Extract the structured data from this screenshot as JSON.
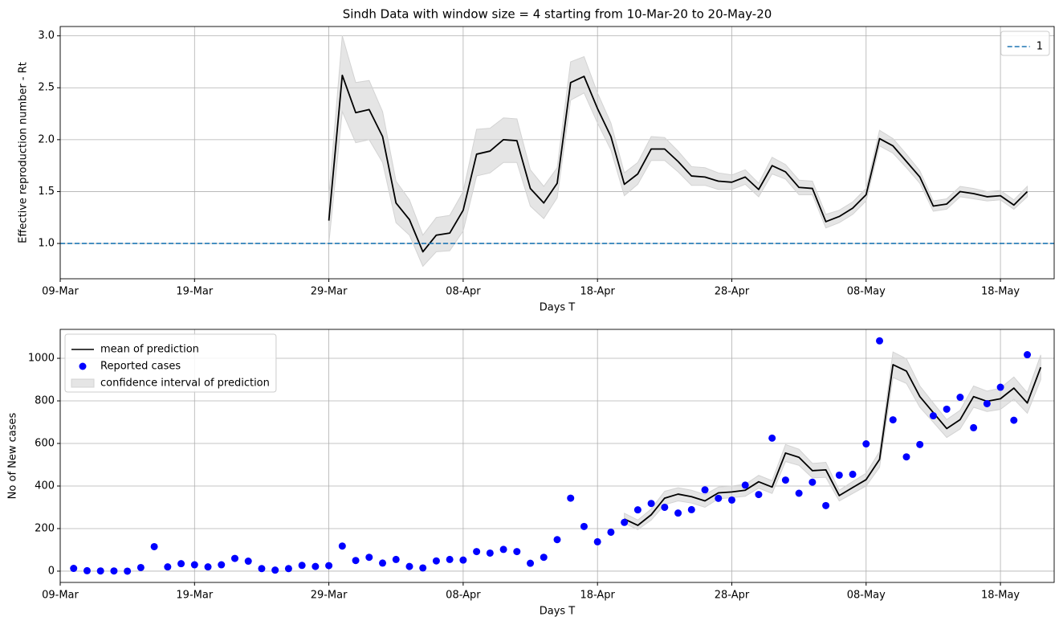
{
  "chart_data": [
    {
      "type": "line",
      "title": "Sindh Data with window size = 4 starting from 10-Mar-20 to 20-May-20",
      "xlabel": "Days T",
      "ylabel": "Effective reproduction number - Rt",
      "xlim": [
        "09-Mar",
        "22-May"
      ],
      "xticks": [
        "09-Mar",
        "19-Mar",
        "29-Mar",
        "08-Apr",
        "18-Apr",
        "28-Apr",
        "08-May",
        "18-May"
      ],
      "ylim": [
        0.66,
        3.09
      ],
      "yticks": [
        {
          "value": 1,
          "label": "1.0"
        },
        {
          "value": 1.5,
          "label": "1.5"
        },
        {
          "value": 2,
          "label": "2.0"
        },
        {
          "value": 2.5,
          "label": "2.5"
        },
        {
          "value": 3,
          "label": "3.0"
        }
      ],
      "grid": true,
      "legend": "upper right",
      "series": [
        {
          "type": "band",
          "color": "#d3d3d3",
          "x": [
            "29-Mar",
            "30-Mar",
            "31-Mar",
            "01-Apr",
            "02-Apr",
            "03-Apr",
            "04-Apr",
            "05-Apr",
            "06-Apr",
            "07-Apr",
            "08-Apr",
            "09-Apr",
            "10-Apr",
            "11-Apr",
            "12-Apr",
            "13-Apr",
            "14-Apr",
            "15-Apr",
            "16-Apr",
            "17-Apr",
            "18-Apr",
            "19-Apr",
            "20-Apr",
            "21-Apr",
            "22-Apr",
            "23-Apr",
            "24-Apr",
            "25-Apr",
            "26-Apr",
            "27-Apr",
            "28-Apr",
            "29-Apr",
            "30-Apr",
            "01-May",
            "02-May",
            "03-May",
            "04-May",
            "05-May",
            "06-May",
            "07-May",
            "08-May",
            "09-May",
            "10-May",
            "11-May",
            "12-May",
            "13-May",
            "14-May",
            "15-May",
            "16-May",
            "17-May",
            "18-May",
            "19-May",
            "20-May"
          ],
          "lower": [
            1.0,
            2.27,
            1.97,
            2.0,
            1.78,
            1.2,
            1.08,
            0.78,
            0.92,
            0.93,
            1.12,
            1.65,
            1.68,
            1.78,
            1.78,
            1.36,
            1.24,
            1.44,
            2.38,
            2.45,
            2.16,
            1.9,
            1.46,
            1.57,
            1.8,
            1.8,
            1.69,
            1.56,
            1.56,
            1.52,
            1.52,
            1.57,
            1.45,
            1.67,
            1.62,
            1.47,
            1.47,
            1.15,
            1.2,
            1.28,
            1.41,
            1.94,
            1.87,
            1.73,
            1.58,
            1.31,
            1.33,
            1.45,
            1.43,
            1.41,
            1.42,
            1.33,
            1.45
          ],
          "upper": [
            1.45,
            3.0,
            2.55,
            2.57,
            2.27,
            1.6,
            1.42,
            1.08,
            1.25,
            1.27,
            1.5,
            2.1,
            2.11,
            2.21,
            2.2,
            1.71,
            1.55,
            1.73,
            2.75,
            2.8,
            2.45,
            2.16,
            1.68,
            1.78,
            2.03,
            2.02,
            1.89,
            1.74,
            1.73,
            1.68,
            1.66,
            1.71,
            1.58,
            1.83,
            1.76,
            1.61,
            1.6,
            1.28,
            1.32,
            1.4,
            1.53,
            2.09,
            2.01,
            1.86,
            1.7,
            1.41,
            1.43,
            1.55,
            1.53,
            1.5,
            1.51,
            1.42,
            1.55
          ]
        },
        {
          "type": "line",
          "color": "#000000",
          "x": [
            "29-Mar",
            "30-Mar",
            "31-Mar",
            "01-Apr",
            "02-Apr",
            "03-Apr",
            "04-Apr",
            "05-Apr",
            "06-Apr",
            "07-Apr",
            "08-Apr",
            "09-Apr",
            "10-Apr",
            "11-Apr",
            "12-Apr",
            "13-Apr",
            "14-Apr",
            "15-Apr",
            "16-Apr",
            "17-Apr",
            "18-Apr",
            "19-Apr",
            "20-Apr",
            "21-Apr",
            "22-Apr",
            "23-Apr",
            "24-Apr",
            "25-Apr",
            "26-Apr",
            "27-Apr",
            "28-Apr",
            "29-Apr",
            "30-Apr",
            "01-May",
            "02-May",
            "03-May",
            "04-May",
            "05-May",
            "06-May",
            "07-May",
            "08-May",
            "09-May",
            "10-May",
            "11-May",
            "12-May",
            "13-May",
            "14-May",
            "15-May",
            "16-May",
            "17-May",
            "18-May",
            "19-May",
            "20-May"
          ],
          "values": [
            1.22,
            2.62,
            2.26,
            2.29,
            2.03,
            1.39,
            1.23,
            0.92,
            1.08,
            1.1,
            1.32,
            1.86,
            1.89,
            2.0,
            1.99,
            1.53,
            1.39,
            1.58,
            2.55,
            2.61,
            2.3,
            2.03,
            1.57,
            1.67,
            1.91,
            1.91,
            1.79,
            1.65,
            1.64,
            1.6,
            1.59,
            1.64,
            1.52,
            1.75,
            1.69,
            1.54,
            1.53,
            1.21,
            1.26,
            1.34,
            1.47,
            2.01,
            1.94,
            1.79,
            1.64,
            1.36,
            1.38,
            1.5,
            1.48,
            1.45,
            1.46,
            1.37,
            1.5
          ]
        },
        {
          "name": "1",
          "type": "hline",
          "value": 1,
          "color": "#1f77b4",
          "dash": true
        }
      ]
    },
    {
      "type": "line",
      "xlabel": "Days T",
      "ylabel": "No of New cases",
      "xlim": [
        "09-Mar",
        "22-May"
      ],
      "xticks": [
        "09-Mar",
        "19-Mar",
        "29-Mar",
        "08-Apr",
        "18-Apr",
        "28-Apr",
        "08-May",
        "18-May"
      ],
      "ylim": [
        -53,
        1136
      ],
      "yticks": [
        0,
        200,
        400,
        600,
        800,
        1000
      ],
      "grid": true,
      "legend": "upper left",
      "series": [
        {
          "name": "mean of prediction",
          "type": "line",
          "color": "#000000",
          "x": [
            "20-Apr",
            "21-Apr",
            "22-Apr",
            "23-Apr",
            "24-Apr",
            "25-Apr",
            "26-Apr",
            "27-Apr",
            "28-Apr",
            "29-Apr",
            "30-Apr",
            "01-May",
            "02-May",
            "03-May",
            "04-May",
            "05-May",
            "06-May",
            "07-May",
            "08-May",
            "09-May",
            "10-May",
            "11-May",
            "12-May",
            "13-May",
            "14-May",
            "15-May",
            "16-May",
            "17-May",
            "18-May",
            "19-May",
            "20-May",
            "21-May"
          ],
          "values": [
            245,
            215,
            265,
            343,
            362,
            350,
            330,
            368,
            372,
            380,
            420,
            395,
            555,
            535,
            472,
            476,
            355,
            393,
            430,
            525,
            970,
            940,
            820,
            745,
            670,
            712,
            820,
            798,
            810,
            860,
            790,
            958
          ]
        },
        {
          "name": "Reported cases",
          "type": "scatter",
          "color": "#0000ff",
          "x": [
            "10-Mar",
            "11-Mar",
            "12-Mar",
            "13-Mar",
            "14-Mar",
            "15-Mar",
            "16-Mar",
            "17-Mar",
            "18-Mar",
            "19-Mar",
            "20-Mar",
            "21-Mar",
            "22-Mar",
            "23-Mar",
            "24-Mar",
            "25-Mar",
            "26-Mar",
            "27-Mar",
            "28-Mar",
            "29-Mar",
            "30-Mar",
            "31-Mar",
            "01-Apr",
            "02-Apr",
            "03-Apr",
            "04-Apr",
            "05-Apr",
            "06-Apr",
            "07-Apr",
            "08-Apr",
            "09-Apr",
            "10-Apr",
            "11-Apr",
            "12-Apr",
            "13-Apr",
            "14-Apr",
            "15-Apr",
            "16-Apr",
            "17-Apr",
            "18-Apr",
            "19-Apr",
            "20-Apr",
            "21-Apr",
            "22-Apr",
            "23-Apr",
            "24-Apr",
            "25-Apr",
            "26-Apr",
            "27-Apr",
            "28-Apr",
            "29-Apr",
            "30-Apr",
            "01-May",
            "02-May",
            "03-May",
            "04-May",
            "05-May",
            "06-May",
            "07-May",
            "08-May",
            "09-May",
            "10-May",
            "11-May",
            "12-May",
            "13-May",
            "14-May",
            "15-May",
            "16-May",
            "17-May",
            "18-May",
            "19-May",
            "20-May"
          ],
          "values": [
            13,
            2,
            1,
            1,
            0,
            17,
            115,
            20,
            35,
            30,
            20,
            30,
            60,
            47,
            12,
            5,
            12,
            27,
            22,
            26,
            118,
            50,
            65,
            38,
            55,
            22,
            15,
            48,
            55,
            52,
            92,
            85,
            102,
            92,
            37,
            65,
            148,
            343,
            210,
            138,
            183,
            229,
            288,
            318,
            300,
            273,
            289,
            382,
            342,
            334,
            404,
            360,
            625,
            428,
            366,
            418,
            308,
            451,
            455,
            598,
            1082,
            711,
            537,
            595,
            730,
            761,
            817,
            674,
            787,
            864,
            709,
            1017
          ]
        },
        {
          "name": "confidence interval of prediction",
          "type": "band",
          "color": "#d3d3d3",
          "x": [
            "20-Apr",
            "21-Apr",
            "22-Apr",
            "23-Apr",
            "24-Apr",
            "25-Apr",
            "26-Apr",
            "27-Apr",
            "28-Apr",
            "29-Apr",
            "30-Apr",
            "01-May",
            "02-May",
            "03-May",
            "04-May",
            "05-May",
            "06-May",
            "07-May",
            "08-May",
            "09-May",
            "10-May",
            "11-May",
            "12-May",
            "13-May",
            "14-May",
            "15-May",
            "16-May",
            "17-May",
            "18-May",
            "19-May",
            "20-May",
            "21-May"
          ],
          "lower": [
            225,
            195,
            240,
            312,
            330,
            320,
            300,
            340,
            345,
            352,
            390,
            365,
            515,
            497,
            438,
            441,
            330,
            365,
            400,
            488,
            910,
            882,
            770,
            700,
            628,
            668,
            770,
            750,
            760,
            808,
            742,
            900
          ],
          "upper": [
            272,
            240,
            292,
            375,
            392,
            380,
            360,
            395,
            400,
            408,
            450,
            425,
            595,
            573,
            506,
            511,
            380,
            421,
            460,
            562,
            1030,
            998,
            870,
            790,
            712,
            756,
            870,
            846,
            860,
            912,
            838,
            1016
          ]
        }
      ]
    }
  ]
}
